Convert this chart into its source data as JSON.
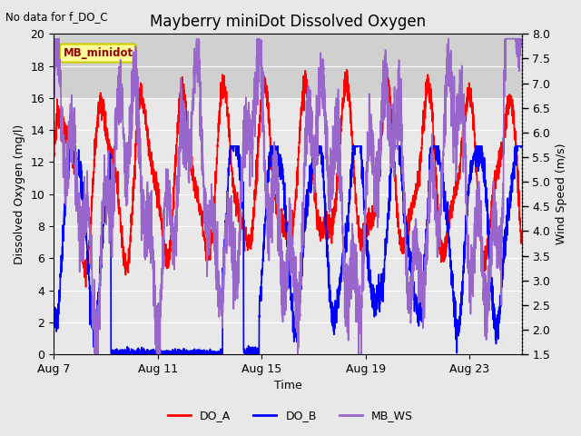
{
  "title": "Mayberry miniDot Dissolved Oxygen",
  "subtitle": "No data for f_DO_C",
  "xlabel": "Time",
  "ylabel_left": "Dissolved Oxygen (mg/l)",
  "ylabel_right": "Wind Speed (m/s)",
  "xlim_days": [
    7,
    25
  ],
  "ylim_left": [
    0,
    20
  ],
  "ylim_right": [
    1.5,
    8.0
  ],
  "yticks_left": [
    0,
    2,
    4,
    6,
    8,
    10,
    12,
    14,
    16,
    18,
    20
  ],
  "yticks_right": [
    1.5,
    2.0,
    2.5,
    3.0,
    3.5,
    4.0,
    4.5,
    5.0,
    5.5,
    6.0,
    6.5,
    7.0,
    7.5,
    8.0
  ],
  "xtick_labels": [
    "Aug 7",
    "Aug 11",
    "Aug 15",
    "Aug 19",
    "Aug 23"
  ],
  "xtick_positions": [
    7,
    11,
    15,
    19,
    23
  ],
  "legend_labels": [
    "DO_A",
    "DO_B",
    "MB_WS"
  ],
  "legend_colors": [
    "red",
    "blue",
    "#9966cc"
  ],
  "fig_bg_color": "#e8e8e8",
  "plot_bg_lower": "#e8e8e8",
  "plot_bg_upper": "#d0d0d0",
  "grid_color": "#ffffff",
  "legend_box_label": "MB_minidot",
  "legend_box_bg": "#ffff99",
  "legend_box_border": "#cccc00",
  "color_DO_A": "red",
  "color_DO_B": "blue",
  "color_MB_WS": "#9966cc",
  "linewidth_DO_A": 1.2,
  "linewidth_DO_B": 1.2,
  "linewidth_MB_WS": 1.2,
  "dpi": 100,
  "figsize": [
    6.4,
    4.8
  ],
  "subtitle_color": "#000000",
  "title_fontsize": 12,
  "axis_fontsize": 9,
  "ylabel_fontsize": 9
}
